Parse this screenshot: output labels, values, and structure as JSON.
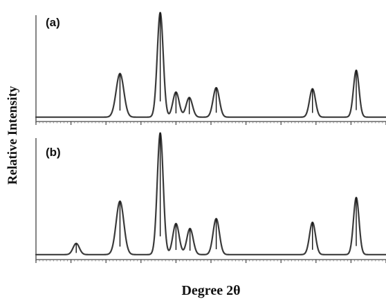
{
  "chart_data": {
    "type": "line",
    "ylabel": "Relative Intensity",
    "xlabel": "Degree 2θ",
    "xlim": [
      0,
      100
    ],
    "panels": [
      {
        "label": "(a)",
        "ylim": [
          0,
          100
        ],
        "baseline": 4,
        "peaks": [
          {
            "x": 24.0,
            "height": 40,
            "width": 1.1
          },
          {
            "x": 35.5,
            "height": 96,
            "width": 0.85
          },
          {
            "x": 40.0,
            "height": 23,
            "width": 0.9
          },
          {
            "x": 43.8,
            "height": 18,
            "width": 0.9
          },
          {
            "x": 51.5,
            "height": 27,
            "width": 0.9
          },
          {
            "x": 79.0,
            "height": 26,
            "width": 0.85
          },
          {
            "x": 91.5,
            "height": 43,
            "width": 0.8
          }
        ]
      },
      {
        "label": "(b)",
        "ylim": [
          0,
          100
        ],
        "baseline": 4,
        "peaks": [
          {
            "x": 11.5,
            "height": 9,
            "width": 0.9
          },
          {
            "x": 24.0,
            "height": 43,
            "width": 1.1
          },
          {
            "x": 35.5,
            "height": 98,
            "width": 0.85
          },
          {
            "x": 40.0,
            "height": 25,
            "width": 0.9
          },
          {
            "x": 44.0,
            "height": 21,
            "width": 0.9
          },
          {
            "x": 51.5,
            "height": 29,
            "width": 0.9
          },
          {
            "x": 79.0,
            "height": 26,
            "width": 0.85
          },
          {
            "x": 91.5,
            "height": 46,
            "width": 0.8
          }
        ]
      }
    ]
  }
}
